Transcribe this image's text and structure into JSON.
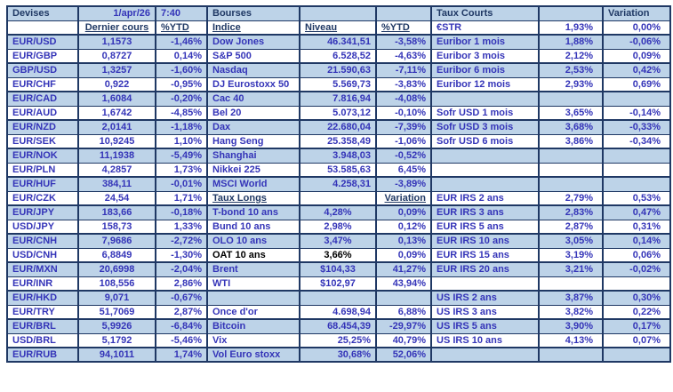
{
  "colors": {
    "row_shade": "#bdd3e8",
    "grid_border": "#1f3864",
    "data_text_blue": "#3434b8",
    "header_text_navy": "#1f3864",
    "oat_row_black": "#000000"
  },
  "header_row": {
    "devises_title": "Devises",
    "date": "1/apr/26",
    "time": "7:40",
    "bourses_title": "Bourses",
    "taux_courts_title": "Taux Courts",
    "variation_label": "Variation"
  },
  "subheader_row": {
    "dernier_cours": "Dernier cours",
    "ytd_devises": "%YTD",
    "indice": "Indice",
    "niveau": "Niveau",
    "ytd_bourses": "%YTD"
  },
  "devises_rows": [
    {
      "label": "EUR/USD",
      "value": "1,1573",
      "ytd": "-1,46%"
    },
    {
      "label": "EUR/GBP",
      "value": "0,8727",
      "ytd": "0,14%"
    },
    {
      "label": "GBP/USD",
      "value": "1,3257",
      "ytd": "-1,60%"
    },
    {
      "label": "EUR/CHF",
      "value": "0,922",
      "ytd": "-0,95%"
    },
    {
      "label": "EUR/CAD",
      "value": "1,6084",
      "ytd": "-0,20%"
    },
    {
      "label": "EUR/AUD",
      "value": "1,6742",
      "ytd": "-4,85%"
    },
    {
      "label": "EUR/NZD",
      "value": "2,0141",
      "ytd": "-1,18%"
    },
    {
      "label": "EUR/SEK",
      "value": "10,9245",
      "ytd": "1,10%"
    },
    {
      "label": "EUR/NOK",
      "value": "11,1938",
      "ytd": "-5,49%"
    },
    {
      "label": "EUR/PLN",
      "value": "4,2857",
      "ytd": "1,73%"
    },
    {
      "label": "EUR/HUF",
      "value": "384,11",
      "ytd": "-0,01%"
    },
    {
      "label": "EUR/CZK",
      "value": "24,54",
      "ytd": "1,71%"
    },
    {
      "label": "EUR/JPY",
      "value": "183,66",
      "ytd": "-0,18%"
    },
    {
      "label": "USD/JPY",
      "value": "158,73",
      "ytd": "1,33%"
    },
    {
      "label": "EUR/CNH",
      "value": "7,9686",
      "ytd": "-2,72%"
    },
    {
      "label": "USD/CNH",
      "value": "6,8849",
      "ytd": "-1,30%"
    },
    {
      "label": "EUR/MXN",
      "value": "20,6998",
      "ytd": "-2,04%"
    },
    {
      "label": "EUR/INR",
      "value": "108,556",
      "ytd": "2,86%"
    },
    {
      "label": "EUR/HKD",
      "value": "9,071",
      "ytd": "-0,67%"
    },
    {
      "label": "EUR/TRY",
      "value": "51,7069",
      "ytd": "2,87%"
    },
    {
      "label": "EUR/BRL",
      "value": "5,9926",
      "ytd": "-6,84%"
    },
    {
      "label": "USD/BRL",
      "value": "5,1792",
      "ytd": "-5,46%"
    },
    {
      "label": "EUR/RUB",
      "value": "94,1011",
      "ytd": "1,74%"
    }
  ],
  "bourses_rows": [
    {
      "row": 3,
      "label": "Dow Jones",
      "value": "46.341,51",
      "ytd": "-3,58%"
    },
    {
      "row": 4,
      "label": "S&P 500",
      "value": "6.528,52",
      "ytd": "-4,63%"
    },
    {
      "row": 5,
      "label": "Nasdaq",
      "value": "21.590,63",
      "ytd": "-7,11%"
    },
    {
      "row": 6,
      "label": "DJ Eurostoxx 50",
      "value": "5.569,73",
      "ytd": "-3,83%"
    },
    {
      "row": 7,
      "label": "Cac 40",
      "value": "7.816,94",
      "ytd": "-4,08%"
    },
    {
      "row": 8,
      "label": "Bel 20",
      "value": "5.073,12",
      "ytd": "-0,10%"
    },
    {
      "row": 9,
      "label": "Dax",
      "value": "22.680,04",
      "ytd": "-7,39%"
    },
    {
      "row": 10,
      "label": "Hang Seng",
      "value": "25.358,49",
      "ytd": "-1,06%"
    },
    {
      "row": 11,
      "label": "Shanghai",
      "value": "3.948,03",
      "ytd": "-0,52%"
    },
    {
      "row": 12,
      "label": "Nikkei 225",
      "value": "53.585,63",
      "ytd": "6,45%"
    },
    {
      "row": 13,
      "label": "MSCI World",
      "value": "4.258,31",
      "ytd": "-3,89%"
    },
    {
      "row": 14,
      "type": "subheader",
      "label": "Taux Longs",
      "value": "",
      "ytd": "Variation"
    },
    {
      "row": 15,
      "label": "T-bond 10 ans",
      "value": "4,28%",
      "ytd": "0,09%",
      "center_value": true
    },
    {
      "row": 16,
      "label": "Bund 10 ans",
      "value": "2,98%",
      "ytd": "0,12%",
      "center_value": true
    },
    {
      "row": 17,
      "label": "OLO 10 ans",
      "value": "3,47%",
      "ytd": "0,13%",
      "center_value": true
    },
    {
      "row": 18,
      "label": "OAT 10 ans",
      "value": "3,66%",
      "ytd": "0,09%",
      "center_value": true,
      "black": true
    },
    {
      "row": 19,
      "label": "Brent",
      "value": "$104,33",
      "ytd": "41,27%",
      "center_value": true
    },
    {
      "row": 20,
      "label": "WTI",
      "value": "$102,97",
      "ytd": "43,94%",
      "center_value": true
    },
    {
      "row": 22,
      "label": "Once d'or",
      "value": "4.698,94",
      "ytd": "6,88%"
    },
    {
      "row": 23,
      "label": "Bitcoin",
      "value": "68.454,39",
      "ytd": "-29,97%"
    },
    {
      "row": 24,
      "label": "Vix",
      "value": "25,25%",
      "ytd": "40,79%"
    },
    {
      "row": 25,
      "label": "Vol Euro stoxx",
      "value": "30,68%",
      "ytd": "52,06%"
    }
  ],
  "taux_courts_rows": [
    {
      "row": 2,
      "label": "€STR",
      "value": "1,93%",
      "variation": "0,00%"
    },
    {
      "row": 3,
      "label": "Euribor 1 mois",
      "value": "1,88%",
      "variation": "-0,06%"
    },
    {
      "row": 4,
      "label": "Euribor 3 mois",
      "value": "2,12%",
      "variation": "0,09%"
    },
    {
      "row": 5,
      "label": "Euribor 6 mois",
      "value": "2,53%",
      "variation": "0,42%"
    },
    {
      "row": 6,
      "label": "Euribor 12 mois",
      "value": "2,93%",
      "variation": "0,69%"
    },
    {
      "row": 8,
      "label": "Sofr USD 1 mois",
      "value": "3,65%",
      "variation": "-0,14%"
    },
    {
      "row": 9,
      "label": "Sofr USD 3 mois",
      "value": "3,68%",
      "variation": "-0,33%"
    },
    {
      "row": 10,
      "label": "Sofr USD 6 mois",
      "value": "3,86%",
      "variation": "-0,34%"
    },
    {
      "row": 14,
      "label": "EUR IRS 2 ans",
      "value": "2,79%",
      "variation": "0,53%"
    },
    {
      "row": 15,
      "label": "EUR IRS 3 ans",
      "value": "2,83%",
      "variation": "0,47%"
    },
    {
      "row": 16,
      "label": "EUR IRS 5 ans",
      "value": "2,87%",
      "variation": "0,31%"
    },
    {
      "row": 17,
      "label": "EUR IRS 10 ans",
      "value": "3,05%",
      "variation": "0,14%"
    },
    {
      "row": 18,
      "label": "EUR IRS 15 ans",
      "value": "3,19%",
      "variation": "0,06%"
    },
    {
      "row": 19,
      "label": "EUR IRS 20 ans",
      "value": "3,21%",
      "variation": "-0,02%"
    },
    {
      "row": 21,
      "label": "US IRS 2 ans",
      "value": "3,87%",
      "variation": "0,30%"
    },
    {
      "row": 22,
      "label": "US IRS 3 ans",
      "value": "3,82%",
      "variation": "0,22%"
    },
    {
      "row": 23,
      "label": "US IRS 5 ans",
      "value": "3,90%",
      "variation": "0,17%"
    },
    {
      "row": 24,
      "label": "US IRS 10 ans",
      "value": "4,13%",
      "variation": "0,07%"
    }
  ],
  "layout": {
    "row_count": 25,
    "devises_start_row": 3
  }
}
